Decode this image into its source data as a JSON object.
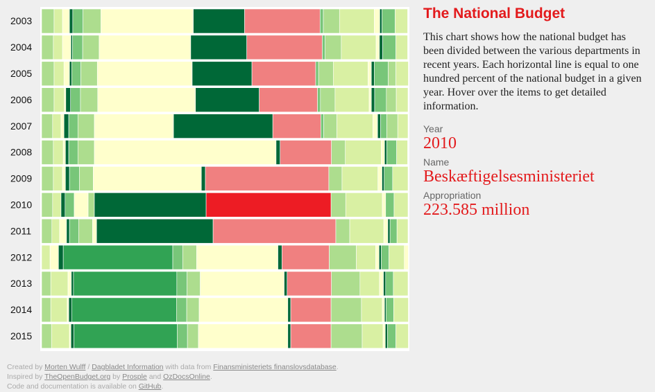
{
  "chart_data": {
    "type": "stacked-bar-100",
    "categories": [
      "2003",
      "2004",
      "2005",
      "2006",
      "2007",
      "2008",
      "2009",
      "2010",
      "2011",
      "2012",
      "2013",
      "2014",
      "2015"
    ],
    "xlim": [
      0,
      100
    ],
    "values": [
      [
        3.4,
        2.3,
        1.9,
        0.9,
        2.8,
        4.9,
        25.2,
        14.0,
        20.6,
        0.9,
        4.4,
        9.5,
        1.5,
        0.6,
        3.6,
        3.4
      ],
      [
        3.2,
        2.5,
        2.3,
        0.4,
        2.8,
        4.5,
        25.0,
        15.3,
        20.6,
        0.8,
        4.4,
        9.5,
        0.9,
        0.9,
        3.6,
        3.2
      ],
      [
        3.4,
        2.7,
        1.5,
        0.6,
        2.5,
        4.5,
        25.9,
        16.3,
        17.4,
        0.8,
        4.0,
        9.5,
        0.9,
        0.8,
        3.8,
        2.1,
        3.4
      ],
      [
        3.4,
        2.8,
        0.4,
        1.3,
        2.7,
        4.7,
        26.7,
        17.4,
        15.9,
        0.8,
        4.0,
        9.3,
        0.6,
        0.9,
        3.2,
        2.7,
        3.2
      ],
      [
        3.0,
        2.3,
        0.8,
        1.3,
        2.5,
        4.5,
        21.6,
        27.1,
        13.1,
        0.8,
        3.6,
        9.8,
        1.3,
        0.8,
        1.7,
        3.0,
        2.8
      ],
      [
        3.2,
        2.7,
        0.6,
        0.9,
        2.5,
        4.5,
        49.6,
        1.1,
        14.0,
        3.8,
        9.8,
        0.9,
        0.6,
        2.7,
        3.0
      ],
      [
        3.2,
        2.5,
        0.8,
        1.1,
        2.7,
        3.8,
        29.5,
        1.1,
        33.7,
        3.6,
        9.8,
        1.1,
        0.6,
        2.3,
        4.2
      ],
      [
        3.0,
        2.3,
        1.1,
        2.5,
        3.8,
        1.7,
        30.5,
        34.1,
        4.0,
        10.0,
        0.9,
        2.3,
        3.8
      ],
      [
        2.8,
        2.1,
        1.9,
        0.8,
        2.5,
        3.8,
        1.1,
        31.8,
        33.5,
        3.8,
        9.3,
        1.1,
        0.6,
        1.9,
        3.0
      ],
      [
        2.3,
        2.3,
        1.3,
        29.9,
        2.7,
        3.8,
        22.2,
        1.1,
        12.9,
        7.4,
        5.3,
        0.9,
        0.6,
        2.1,
        4.2,
        1.1
      ],
      [
        2.5,
        4.7,
        0.9,
        0.6,
        28.2,
        2.8,
        3.6,
        22.9,
        0.8,
        12.1,
        7.8,
        5.3,
        1.1,
        0.6,
        2.1,
        4.0
      ],
      [
        2.5,
        4.5,
        0.4,
        0.8,
        28.6,
        2.8,
        3.4,
        24.2,
        0.8,
        11.0,
        8.3,
        5.7,
        0.6,
        0.4,
        2.1,
        4.0
      ],
      [
        2.7,
        4.9,
        0.4,
        0.8,
        28.2,
        2.8,
        3.0,
        24.4,
        0.8,
        11.0,
        8.5,
        5.7,
        0.6,
        0.6,
        2.3,
        3.4
      ]
    ],
    "colors": [
      [
        "#addd8e",
        "#d9f0a3",
        "#ffffcc",
        "#006837",
        "#78c679",
        "#addd8e",
        "#ffffcc",
        "#006837",
        "#f08080",
        "#78c679",
        "#addd8e",
        "#d9f0a3",
        "#ffffcc",
        "#006837",
        "#78c679",
        "#d9f0a3"
      ],
      [
        "#addd8e",
        "#d9f0a3",
        "#ffffcc",
        "#006837",
        "#78c679",
        "#addd8e",
        "#ffffcc",
        "#006837",
        "#f08080",
        "#78c679",
        "#addd8e",
        "#d9f0a3",
        "#ffffcc",
        "#006837",
        "#78c679",
        "#d9f0a3"
      ],
      [
        "#addd8e",
        "#d9f0a3",
        "#ffffcc",
        "#006837",
        "#78c679",
        "#addd8e",
        "#ffffcc",
        "#006837",
        "#f08080",
        "#78c679",
        "#addd8e",
        "#d9f0a3",
        "#ffffcc",
        "#006837",
        "#78c679",
        "#addd8e",
        "#d9f0a3"
      ],
      [
        "#addd8e",
        "#d9f0a3",
        "#ffffcc",
        "#006837",
        "#78c679",
        "#addd8e",
        "#ffffcc",
        "#006837",
        "#f08080",
        "#78c679",
        "#addd8e",
        "#d9f0a3",
        "#ffffcc",
        "#006837",
        "#78c679",
        "#addd8e",
        "#d9f0a3"
      ],
      [
        "#addd8e",
        "#d9f0a3",
        "#ffffcc",
        "#006837",
        "#78c679",
        "#addd8e",
        "#ffffcc",
        "#006837",
        "#f08080",
        "#78c679",
        "#addd8e",
        "#d9f0a3",
        "#ffffcc",
        "#006837",
        "#78c679",
        "#addd8e",
        "#d9f0a3"
      ],
      [
        "#addd8e",
        "#d9f0a3",
        "#ffffcc",
        "#006837",
        "#78c679",
        "#addd8e",
        "#ffffcc",
        "#006837",
        "#f08080",
        "#addd8e",
        "#d9f0a3",
        "#ffffcc",
        "#006837",
        "#78c679",
        "#d9f0a3"
      ],
      [
        "#addd8e",
        "#d9f0a3",
        "#ffffcc",
        "#006837",
        "#78c679",
        "#addd8e",
        "#ffffcc",
        "#006837",
        "#f08080",
        "#addd8e",
        "#d9f0a3",
        "#ffffcc",
        "#006837",
        "#78c679",
        "#d9f0a3"
      ],
      [
        "#addd8e",
        "#d9f0a3",
        "#006837",
        "#78c679",
        "#ffffcc",
        "#addd8e",
        "#006837",
        "#ed1c24",
        "#addd8e",
        "#d9f0a3",
        "#ffffcc",
        "#78c679",
        "#d9f0a3"
      ],
      [
        "#addd8e",
        "#d9f0a3",
        "#ffffcc",
        "#006837",
        "#78c679",
        "#addd8e",
        "#ffffcc",
        "#006837",
        "#f08080",
        "#addd8e",
        "#d9f0a3",
        "#ffffcc",
        "#006837",
        "#78c679",
        "#d9f0a3"
      ],
      [
        "#d9f0a3",
        "#ffffcc",
        "#006837",
        "#31a354",
        "#78c679",
        "#addd8e",
        "#ffffcc",
        "#006837",
        "#f08080",
        "#addd8e",
        "#d9f0a3",
        "#ffffcc",
        "#006837",
        "#78c679",
        "#d9f0a3",
        "#ffffcc"
      ],
      [
        "#addd8e",
        "#d9f0a3",
        "#ffffcc",
        "#006837",
        "#31a354",
        "#78c679",
        "#addd8e",
        "#ffffcc",
        "#006837",
        "#f08080",
        "#addd8e",
        "#d9f0a3",
        "#ffffcc",
        "#006837",
        "#78c679",
        "#d9f0a3"
      ],
      [
        "#addd8e",
        "#d9f0a3",
        "#ffffcc",
        "#006837",
        "#31a354",
        "#78c679",
        "#addd8e",
        "#ffffcc",
        "#006837",
        "#f08080",
        "#addd8e",
        "#d9f0a3",
        "#ffffcc",
        "#006837",
        "#78c679",
        "#d9f0a3"
      ],
      [
        "#addd8e",
        "#d9f0a3",
        "#ffffcc",
        "#006837",
        "#31a354",
        "#78c679",
        "#addd8e",
        "#ffffcc",
        "#006837",
        "#f08080",
        "#addd8e",
        "#d9f0a3",
        "#ffffcc",
        "#006837",
        "#78c679",
        "#d9f0a3"
      ]
    ]
  },
  "panel": {
    "title": "The National Budget",
    "description": "This chart shows how the national budget has been divided between the various departments in recent years. Each horizontal line is equal to one hundred percent of the national budget in a given year. Hover over the items to get detailed information.",
    "fields": [
      {
        "label": "Year",
        "value": "2010"
      },
      {
        "label": "Name",
        "value": "Beskæftigelsesministeriet"
      },
      {
        "label": "Appropriation",
        "value": "223.585 million"
      }
    ]
  },
  "footer": {
    "lines": [
      [
        "Created by ",
        "Morten Wulff",
        " / ",
        "Dagbladet Information",
        " with data from ",
        "Finansministeriets finanslovsdatabase",
        "."
      ],
      [
        "Inspired by ",
        "TheOpenBudget.org",
        " by ",
        "Prosple",
        " and ",
        "OzDocsOnline",
        "."
      ],
      [
        "Code and documentation is available on ",
        "GitHub",
        "."
      ]
    ]
  }
}
